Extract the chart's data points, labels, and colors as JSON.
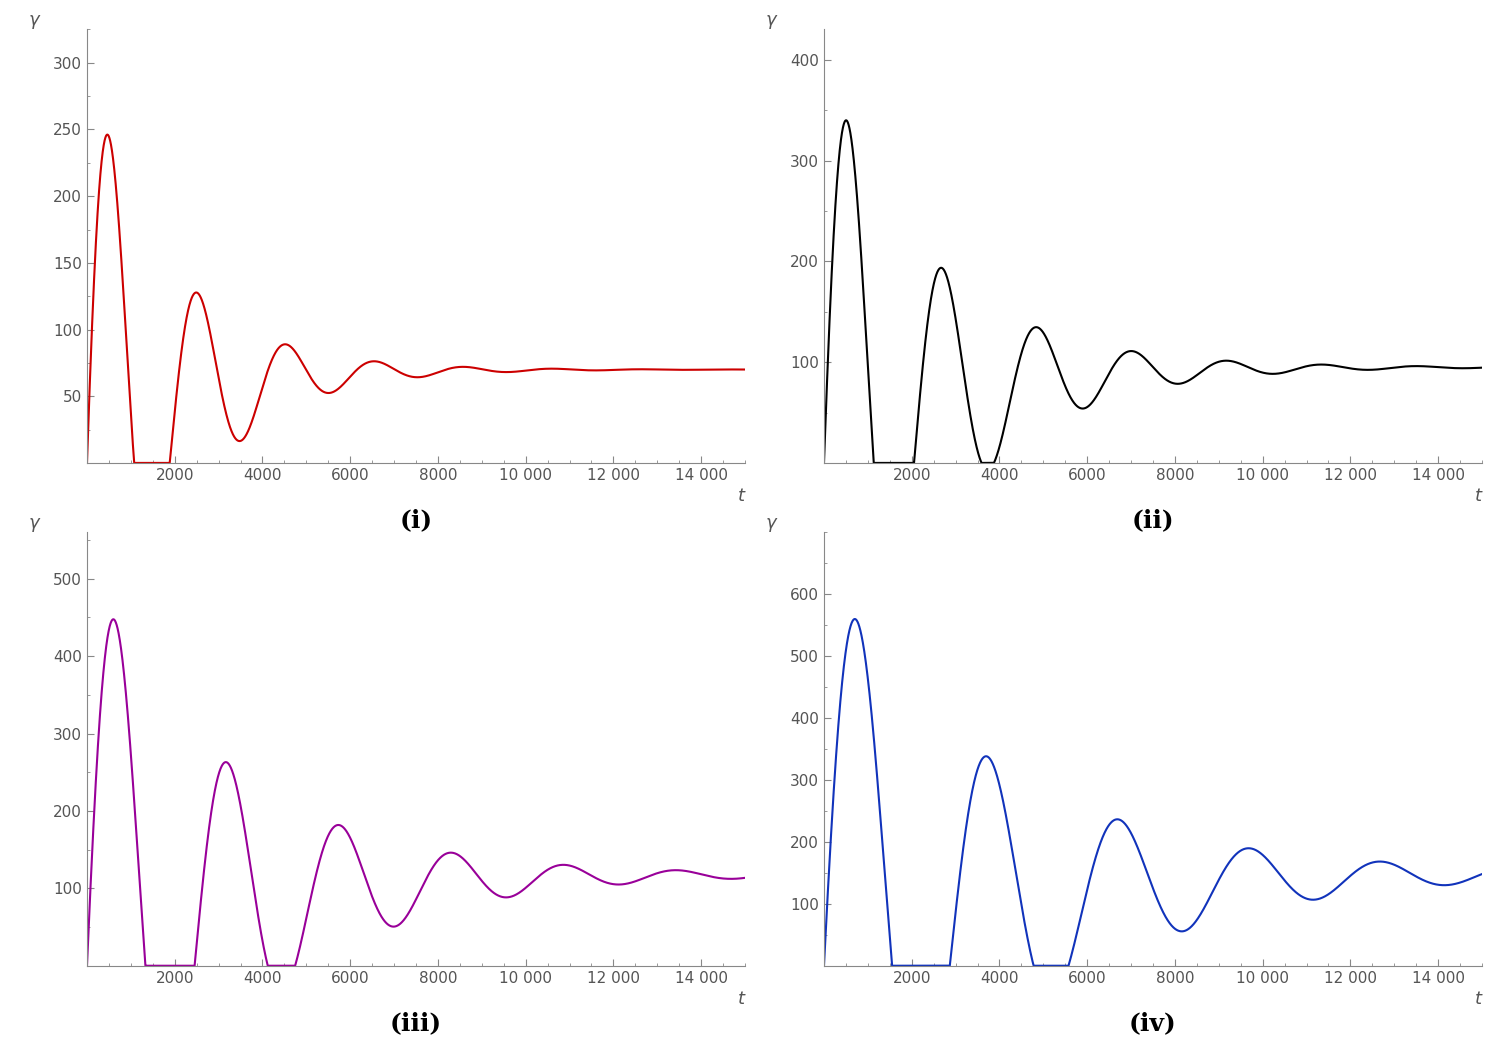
{
  "subplots": [
    {
      "label": "(i)",
      "color": "#cc0000",
      "steady_state": 70,
      "amplitude": 300,
      "decay_rate": 0.00055,
      "freq": 0.0031,
      "phase_shift": 0.0,
      "ylim": [
        0,
        325
      ],
      "yticks": [
        50,
        100,
        150,
        200,
        250,
        300
      ],
      "xticks": [
        2000,
        4000,
        6000,
        8000,
        10000,
        12000,
        14000
      ],
      "xtick_labels": [
        "2000",
        "4000",
        "6000",
        "8000",
        "10 000",
        "12 000",
        "14 000"
      ]
    },
    {
      "label": "(ii)",
      "color": "#000000",
      "steady_state": 95,
      "amplitude": 400,
      "decay_rate": 0.00042,
      "freq": 0.0029,
      "phase_shift": 0.0,
      "ylim": [
        0,
        430
      ],
      "yticks": [
        100,
        200,
        300,
        400
      ],
      "xticks": [
        2000,
        4000,
        6000,
        8000,
        10000,
        12000,
        14000
      ],
      "xtick_labels": [
        "2000",
        "4000",
        "6000",
        "8000",
        "10 000",
        "12 000",
        "14 000"
      ]
    },
    {
      "label": "(iii)",
      "color": "#990099",
      "steady_state": 118,
      "amplitude": 520,
      "decay_rate": 0.00032,
      "freq": 0.00245,
      "phase_shift": 0.0,
      "ylim": [
        0,
        560
      ],
      "yticks": [
        100,
        200,
        300,
        400,
        500
      ],
      "xticks": [
        2000,
        4000,
        6000,
        8000,
        10000,
        12000,
        14000
      ],
      "xtick_labels": [
        "2000",
        "4000",
        "6000",
        "8000",
        "10 000",
        "12 000",
        "14 000"
      ]
    },
    {
      "label": "(iv)",
      "color": "#1133bb",
      "steady_state": 150,
      "amplitude": 645,
      "decay_rate": 0.00026,
      "freq": 0.0021,
      "phase_shift": 0.0,
      "ylim": [
        0,
        700
      ],
      "yticks": [
        100,
        200,
        300,
        400,
        500,
        600
      ],
      "xticks": [
        2000,
        4000,
        6000,
        8000,
        10000,
        12000,
        14000
      ],
      "xtick_labels": [
        "2000",
        "4000",
        "6000",
        "8000",
        "10 000",
        "12 000",
        "14 000"
      ]
    }
  ],
  "t_max": 15000,
  "t_points": 20000,
  "bg_color": "#ffffff",
  "label_fontsize": 18,
  "tick_fontsize": 11,
  "axis_label_fontsize": 13,
  "line_width": 1.5
}
